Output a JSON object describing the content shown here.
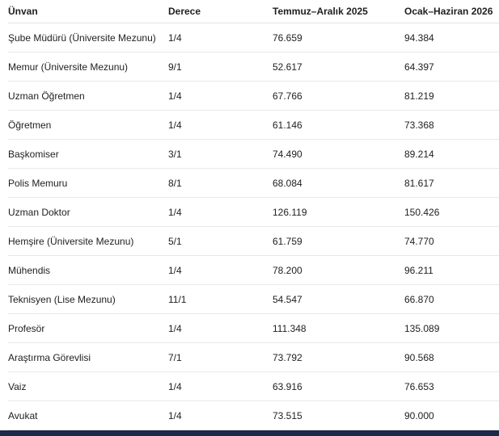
{
  "table": {
    "headers": [
      "Ünvan",
      "Derece",
      "Temmuz–Aralık 2025",
      "Ocak–Haziran 2026"
    ],
    "rows": [
      [
        "Şube Müdürü (Üniversite Mezunu)",
        "1/4",
        "76.659",
        "94.384"
      ],
      [
        "Memur (Üniversite Mezunu)",
        "9/1",
        "52.617",
        "64.397"
      ],
      [
        "Uzman Öğretmen",
        "1/4",
        "67.766",
        "81.219"
      ],
      [
        "Öğretmen",
        "1/4",
        "61.146",
        "73.368"
      ],
      [
        "Başkomiser",
        "3/1",
        "74.490",
        "89.214"
      ],
      [
        "Polis Memuru",
        "8/1",
        "68.084",
        "81.617"
      ],
      [
        "Uzman Doktor",
        "1/4",
        "126.119",
        "150.426"
      ],
      [
        "Hemşire (Üniversite Mezunu)",
        "5/1",
        "61.759",
        "74.770"
      ],
      [
        "Mühendis",
        "1/4",
        "78.200",
        "96.211"
      ],
      [
        "Teknisyen (Lise Mezunu)",
        "11/1",
        "54.547",
        "66.870"
      ],
      [
        "Profesör",
        "1/4",
        "111.348",
        "135.089"
      ],
      [
        "Araştırma Görevlisi",
        "7/1",
        "73.792",
        "90.568"
      ],
      [
        "Vaiz",
        "1/4",
        "63.916",
        "76.653"
      ],
      [
        "Avukat",
        "1/4",
        "73.515",
        "90.000"
      ]
    ]
  },
  "colors": {
    "bottom_bar": "#1b2a4a",
    "row_divider": "#e9e9e9",
    "text": "#212121"
  }
}
